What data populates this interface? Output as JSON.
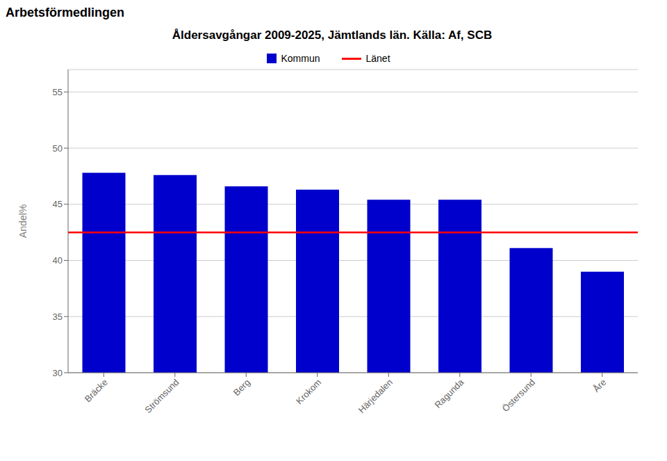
{
  "chart_data": {
    "type": "bar",
    "title": "Åldersavgångar 2009-2025, Jämtlands län. Källa: Af, SCB",
    "annotations": [
      "Arbetsförmedlingen"
    ],
    "ylabel": "Andel%",
    "categories": [
      "Bräcke",
      "Strömsund",
      "Berg",
      "Krokom",
      "Härjedalen",
      "Ragunda",
      "Östersund",
      "Åre"
    ],
    "series": [
      {
        "name": "Kommun",
        "color": "#0000CC",
        "values": [
          47.8,
          47.6,
          46.6,
          46.3,
          45.4,
          45.4,
          41.1,
          39.0
        ]
      }
    ],
    "reference_lines": [
      {
        "name": "Länet",
        "value": 42.5,
        "color": "#FF0000"
      }
    ],
    "ylim": [
      30,
      57
    ],
    "yticks": [
      30,
      35,
      40,
      45,
      50,
      55
    ],
    "grid": true,
    "legend": "top"
  }
}
